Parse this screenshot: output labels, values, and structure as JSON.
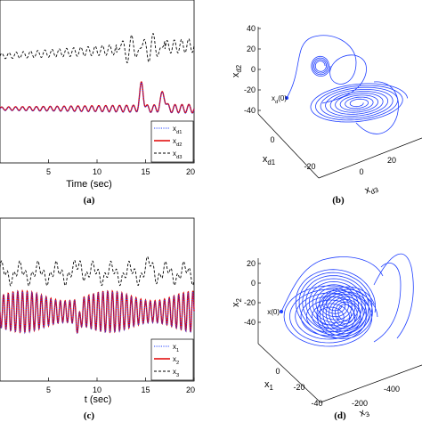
{
  "chart_data": [
    {
      "type": "line",
      "panel_label": "(a)",
      "xlabel": "Time (sec)",
      "xlim": [
        0,
        20
      ],
      "xticks": [
        "5",
        "10",
        "15",
        "20"
      ],
      "series": [
        {
          "name": "x",
          "sub": "d1",
          "color": "#1f3fff",
          "style": "dotted"
        },
        {
          "name": "x",
          "sub": "d2",
          "color": "#e00000",
          "style": "solid"
        },
        {
          "name": "x",
          "sub": "d3",
          "color": "#000000",
          "style": "dashed"
        }
      ]
    },
    {
      "type": "line",
      "panel_label": "(b)",
      "labels": {
        "z": {
          "base": "x",
          "sub": "d2"
        },
        "x": {
          "base": "x",
          "sub": "d1"
        },
        "y": {
          "base": "x",
          "sub": "d3"
        },
        "init": {
          "base": "x",
          "sub": "d",
          "tail": "(0)"
        }
      },
      "zticks": [
        "40",
        "20",
        "0",
        "-20",
        "-40"
      ],
      "xticks": [
        "0",
        "-20"
      ],
      "yticks": [
        "20",
        "0"
      ],
      "color": "#1f3fff"
    },
    {
      "type": "line",
      "panel_label": "(c)",
      "xlabel": "t (sec)",
      "xlim": [
        0,
        20
      ],
      "xticks": [
        "5",
        "10",
        "15",
        "20"
      ],
      "series": [
        {
          "name": "x",
          "sub": "1",
          "color": "#1f3fff",
          "style": "dotted"
        },
        {
          "name": "x",
          "sub": "2",
          "color": "#e00000",
          "style": "solid"
        },
        {
          "name": "x",
          "sub": "3",
          "color": "#000000",
          "style": "dashed"
        }
      ]
    },
    {
      "type": "line",
      "panel_label": "(d)",
      "labels": {
        "z": {
          "base": "x",
          "sub": "2"
        },
        "x": {
          "base": "x",
          "sub": "1"
        },
        "y": {
          "base": "x",
          "sub": "3"
        },
        "init": {
          "base": "x",
          "sub": "",
          "tail": "(0)"
        }
      },
      "zticks": [
        "20",
        "0",
        "-20",
        "-40"
      ],
      "xticks": [
        "0",
        "-20",
        "-40"
      ],
      "yticks": [
        "-400",
        "-200"
      ],
      "color": "#1f3fff"
    }
  ]
}
